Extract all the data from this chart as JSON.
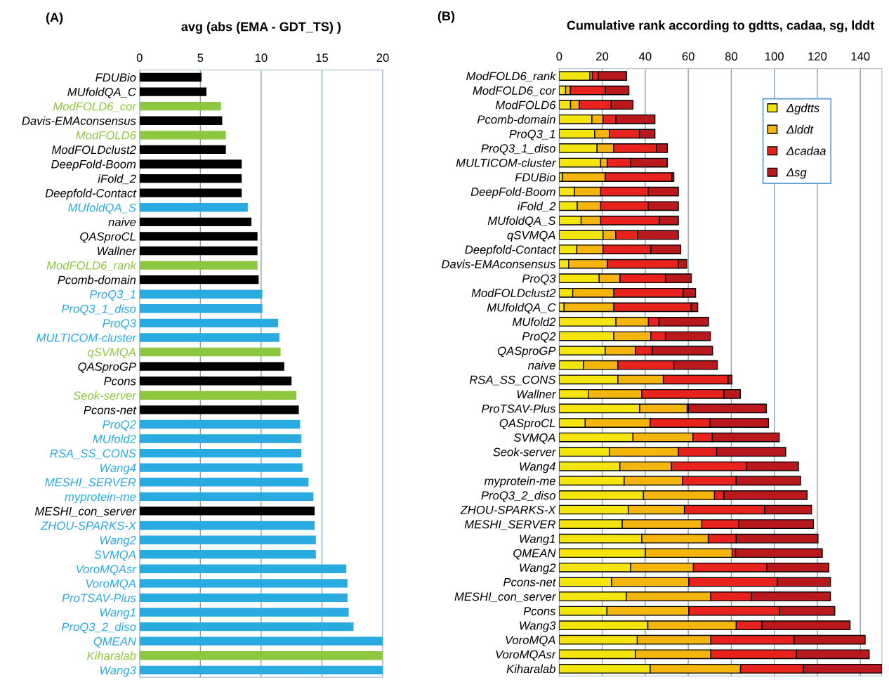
{
  "chart_data": [
    {
      "type": "bar",
      "orientation": "horizontal",
      "title": "avg (abs (EMA - GDT_TS) )",
      "annotations": [
        "(A)"
      ],
      "categories": [
        "FDUBio",
        "MUfoldQA_C",
        "ModFOLD6_cor",
        "Davis-EMAconsensus",
        "ModFOLD6",
        "ModFOLDclust2",
        "DeepFold-Boom",
        "iFold_2",
        "Deepfold-Contact",
        "MUfoldQA_S",
        "naive",
        "QASproCL",
        "Wallner",
        "ModFOLD6_rank",
        "Pcomb-domain",
        "ProQ3_1",
        "ProQ3_1_diso",
        "ProQ3",
        "MULTICOM-cluster",
        "qSVMQA",
        "QASproGP",
        "Pcons",
        "Seok-server",
        "Pcons-net",
        "ProQ2",
        "MUfold2",
        "RSA_SS_CONS",
        "Wang4",
        "MESHI_SERVER",
        "myprotein-me",
        "MESHI_con_server",
        "ZHOU-SPARKS-X",
        "Wang2",
        "SVMQA",
        "VoroMQAsr",
        "VoroMQA",
        "ProTSAV-Plus",
        "Wang1",
        "ProQ3_2_diso",
        "QMEAN",
        "Kiharalab",
        "Wang3"
      ],
      "values": [
        5.1,
        5.5,
        6.7,
        6.8,
        7.1,
        7.1,
        8.4,
        8.4,
        8.4,
        8.9,
        9.2,
        9.7,
        9.7,
        9.7,
        9.8,
        10.1,
        10.1,
        11.4,
        11.5,
        11.6,
        11.9,
        12.5,
        12.9,
        13.1,
        13.2,
        13.3,
        13.3,
        13.4,
        13.9,
        14.3,
        14.4,
        14.4,
        14.5,
        14.5,
        17.0,
        17.1,
        17.1,
        17.2,
        17.6,
        20,
        20,
        20
      ],
      "colors": [
        "#000000",
        "#000000",
        "#8dc63f",
        "#000000",
        "#8dc63f",
        "#000000",
        "#000000",
        "#000000",
        "#000000",
        "#29abe2",
        "#000000",
        "#000000",
        "#000000",
        "#8dc63f",
        "#000000",
        "#29abe2",
        "#29abe2",
        "#29abe2",
        "#29abe2",
        "#8dc63f",
        "#000000",
        "#000000",
        "#8dc63f",
        "#000000",
        "#29abe2",
        "#29abe2",
        "#29abe2",
        "#29abe2",
        "#29abe2",
        "#29abe2",
        "#000000",
        "#29abe2",
        "#29abe2",
        "#29abe2",
        "#29abe2",
        "#29abe2",
        "#29abe2",
        "#29abe2",
        "#29abe2",
        "#29abe2",
        "#8dc63f",
        "#29abe2"
      ],
      "xlim": [
        0,
        20
      ],
      "xticks": [
        0,
        5,
        10,
        15,
        20
      ],
      "grid": "x"
    },
    {
      "type": "bar",
      "orientation": "horizontal",
      "stacked": true,
      "title": "Cumulative rank according to gdtts, cadaa, sg, lddt",
      "annotations": [
        "(B)"
      ],
      "categories": [
        "ModFOLD6_rank",
        "ModFOLD6_cor",
        "ModFOLD6",
        "Pcomb-domain",
        "ProQ3_1",
        "ProQ3_1_diso",
        "MULTICOM-cluster",
        "FDUBio",
        "DeepFold-Boom",
        "iFold_2",
        "MUfoldQA_S",
        "qSVMQA",
        "Deepfold-Contact",
        "Davis-EMAconsensus",
        "ProQ3",
        "ModFOLDclust2",
        "MUfoldQA_C",
        "MUfold2",
        "ProQ2",
        "QASproGP",
        "naive",
        "RSA_SS_CONS",
        "Wallner",
        "ProTSAV-Plus",
        "QASproCL",
        "SVMQA",
        "Seok-server",
        "Wang4",
        "myprotein-me",
        "ProQ3_2_diso",
        "ZHOU-SPARKS-X",
        "MESHI_SERVER",
        "Wang1",
        "QMEAN",
        "Wang2",
        "Pcons-net",
        "MESHI_con_server",
        "Pcons",
        "Wang3",
        "VoroMQA",
        "VoroMQAsr",
        "Kiharalab"
      ],
      "series": [
        {
          "name": "Δgdtts",
          "color": "#f5e50f",
          "values": [
            14.3,
            3.0,
            5.3,
            15.2,
            16.5,
            17.6,
            19.3,
            1.5,
            7.1,
            8.4,
            10.2,
            20.4,
            8.2,
            4.4,
            18.6,
            6.3,
            2.3,
            26.4,
            25.4,
            21.4,
            11.3,
            27.3,
            13.5,
            37.4,
            12.1,
            34.3,
            23.3,
            28.2,
            30.2,
            39.2,
            32.1,
            29.3,
            38.4,
            40.1,
            33.2,
            24.4,
            31.2,
            22.2,
            41.2,
            36.3,
            35.4,
            42.3
          ]
        },
        {
          "name": "Δlddt",
          "color": "#f5b50f",
          "values": [
            1.1,
            2.2,
            4.0,
            5.2,
            6.8,
            7.7,
            3.0,
            19.9,
            12.2,
            10.9,
            9.1,
            5.9,
            12.2,
            18.0,
            9.7,
            19.1,
            23.1,
            15.1,
            17.2,
            14.0,
            16.0,
            21.1,
            24.9,
            22.1,
            30.2,
            27.9,
            32.1,
            24.0,
            27.1,
            33.0,
            26.1,
            37.0,
            30.9,
            40.3,
            29.2,
            35.9,
            39.2,
            38.1,
            41.1,
            34.2,
            35.1,
            42.0
          ]
        },
        {
          "name": "Δcadaa",
          "color": "#e8231e",
          "values": [
            2.8,
            16.3,
            14.9,
            6.0,
            14.0,
            20.0,
            10.9,
            31.0,
            22.2,
            22.2,
            27.2,
            10.2,
            22.2,
            33.0,
            21.1,
            32.2,
            36.0,
            4.9,
            6.8,
            7.9,
            26.0,
            30.1,
            38.2,
            0.6,
            27.9,
            9.0,
            17.8,
            35.0,
            25.0,
            4.3,
            37.3,
            17.1,
            13.0,
            1.6,
            34.1,
            41.1,
            19.0,
            42.1,
            12.0,
            38.8,
            39.8,
            29.3
          ]
        },
        {
          "name": "Δsg",
          "color": "#b9191c",
          "values": [
            13.1,
            10.9,
            10.1,
            18.1,
            7.2,
            5.0,
            17.1,
            0.9,
            13.9,
            13.9,
            8.9,
            18.9,
            13.9,
            3.9,
            12.0,
            5.8,
            3.0,
            23.0,
            20.9,
            28.0,
            20.2,
            1.8,
            7.6,
            36.2,
            27.1,
            31.1,
            32.1,
            24.0,
            29.9,
            38.7,
            21.8,
            34.8,
            38.0,
            40.3,
            28.8,
            24.7,
            36.7,
            25.7,
            40.9,
            32.9,
            33.8,
            36.4
          ]
        }
      ],
      "xlim": [
        0,
        150
      ],
      "xticks": [
        0,
        20,
        40,
        60,
        80,
        100,
        120,
        140
      ],
      "grid": "x",
      "legend": "top right"
    }
  ]
}
